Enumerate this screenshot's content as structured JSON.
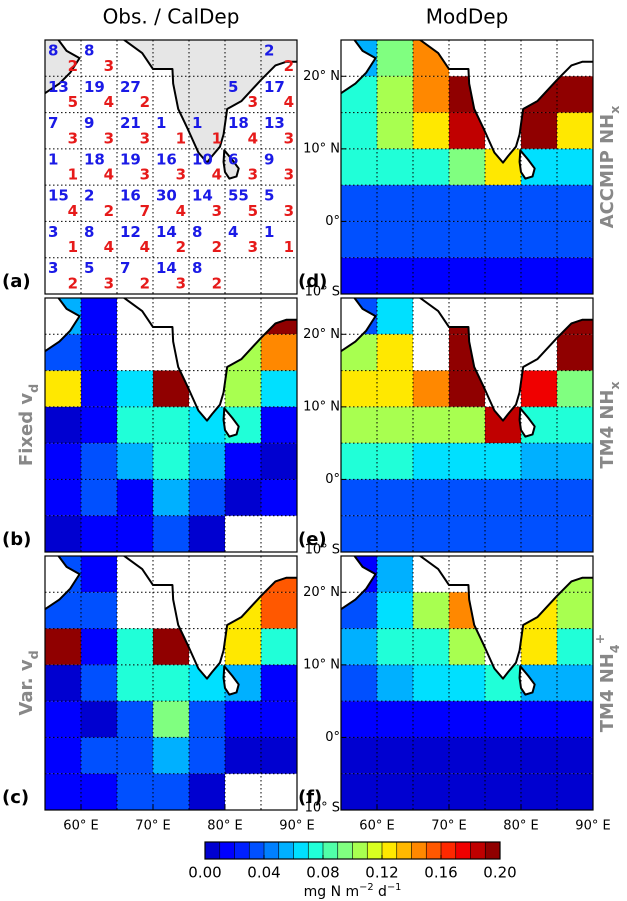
{
  "axes": {
    "xlim": [
      55,
      90
    ],
    "ylim": [
      -10,
      25
    ],
    "x_edges": [
      55,
      60,
      65,
      70,
      75,
      80,
      85,
      90
    ],
    "y_edges": [
      25,
      20,
      15,
      10,
      5,
      0,
      -5,
      -10
    ],
    "xticks": [
      {
        "value": 60,
        "label": "60° E"
      },
      {
        "value": 70,
        "label": "70° E"
      },
      {
        "value": 80,
        "label": "80° E"
      },
      {
        "value": 90,
        "label": "90° E"
      }
    ],
    "yticks": [
      {
        "value": 20,
        "label": "20° N"
      },
      {
        "value": 10,
        "label": "10° N"
      },
      {
        "value": 0,
        "label": "0°"
      },
      {
        "value": -10,
        "label": "10° S"
      }
    ],
    "grid": true
  },
  "colorbar": {
    "lim": [
      0,
      0.2
    ],
    "colors": [
      "#0000d0",
      "#0000ff",
      "#0020ff",
      "#0050ff",
      "#0080ff",
      "#00b0ff",
      "#00e0ff",
      "#20ffd8",
      "#50ffa8",
      "#80ff80",
      "#a8ff50",
      "#d8ff20",
      "#ffe800",
      "#ffb800",
      "#ff8800",
      "#ff5800",
      "#ff2800",
      "#f00000",
      "#c00000",
      "#900000"
    ],
    "ticks": [
      {
        "value": 0,
        "label": "0.00"
      },
      {
        "value": 0.04,
        "label": "0.04"
      },
      {
        "value": 0.08,
        "label": "0.08"
      },
      {
        "value": 0.12,
        "label": "0.12"
      },
      {
        "value": 0.16,
        "label": "0.16"
      },
      {
        "value": 0.2,
        "label": "0.20"
      }
    ],
    "label": [
      {
        "t": "mg N m"
      },
      {
        "sup": "−2"
      },
      {
        "t": " d"
      },
      {
        "sup": "−1"
      }
    ]
  },
  "chart_data": [
    {
      "type": "count-grid",
      "title": "Obs. / CalDep",
      "panel_label": "(a)",
      "blue_numbers": [
        [
          8,
          8,
          null,
          null,
          null,
          null,
          2
        ],
        [
          13,
          19,
          27,
          null,
          null,
          5,
          17
        ],
        [
          7,
          9,
          21,
          1,
          1,
          18,
          13
        ],
        [
          1,
          18,
          19,
          16,
          10,
          6,
          9
        ],
        [
          15,
          2,
          16,
          30,
          14,
          55,
          5
        ],
        [
          3,
          8,
          12,
          14,
          8,
          4,
          1
        ],
        [
          3,
          5,
          7,
          14,
          8,
          null,
          null
        ]
      ],
      "red_numbers": [
        [
          2,
          3,
          null,
          null,
          null,
          null,
          2
        ],
        [
          5,
          4,
          2,
          null,
          null,
          3,
          4
        ],
        [
          3,
          3,
          3,
          1,
          1,
          4,
          3
        ],
        [
          1,
          4,
          3,
          3,
          4,
          3,
          3
        ],
        [
          4,
          2,
          7,
          4,
          3,
          5,
          3
        ],
        [
          1,
          4,
          4,
          2,
          2,
          3,
          1
        ],
        [
          2,
          3,
          2,
          3,
          2,
          null,
          null
        ]
      ]
    },
    {
      "type": "heatmap",
      "panel_label": "(b)",
      "side_label": [
        {
          "t": "Fixed v"
        },
        {
          "sub": "d"
        }
      ],
      "values": [
        [
          0.05,
          0.02,
          null,
          null,
          null,
          null,
          0.19
        ],
        [
          0.04,
          0.02,
          null,
          null,
          null,
          0.11,
          0.14
        ],
        [
          0.12,
          0.02,
          0.06,
          0.19,
          null,
          0.11,
          0.06
        ],
        [
          0.01,
          0.02,
          0.07,
          0.07,
          0.06,
          0.07,
          0.02
        ],
        [
          0.02,
          0.03,
          0.05,
          0.08,
          0.05,
          0.02,
          0.01
        ],
        [
          0.02,
          0.03,
          0.02,
          0.05,
          0.03,
          0.01,
          0.02
        ],
        [
          0.01,
          0.02,
          0.02,
          0.03,
          0.01,
          null,
          null
        ]
      ]
    },
    {
      "type": "heatmap",
      "panel_label": "(c)",
      "side_label": [
        {
          "t": "Var. v"
        },
        {
          "sub": "d"
        }
      ],
      "values": [
        [
          0.04,
          0.02,
          null,
          null,
          null,
          null,
          0.16
        ],
        [
          0.04,
          0.03,
          null,
          null,
          null,
          0.12,
          0.16
        ],
        [
          0.19,
          0.02,
          0.07,
          0.19,
          null,
          0.12,
          0.07
        ],
        [
          0.01,
          0.03,
          0.07,
          0.07,
          0.06,
          0.05,
          0.02
        ],
        [
          0.02,
          0.01,
          0.04,
          0.09,
          0.04,
          0.02,
          0.02
        ],
        [
          0.02,
          0.03,
          0.03,
          0.05,
          0.03,
          0.01,
          0.01
        ],
        [
          0.02,
          0.02,
          0.03,
          0.03,
          0.01,
          null,
          null
        ]
      ]
    },
    {
      "type": "heatmap",
      "title": "ModDep",
      "panel_label": "(d)",
      "side_label": [
        {
          "t": "ACCMIP NH"
        },
        {
          "sub": "x"
        }
      ],
      "values": [
        [
          0.05,
          0.09,
          0.15,
          null,
          null,
          null,
          null
        ],
        [
          0.07,
          0.1,
          0.15,
          0.19,
          null,
          0.19,
          0.19
        ],
        [
          0.08,
          0.1,
          0.12,
          0.18,
          null,
          0.19,
          0.12
        ],
        [
          0.07,
          0.07,
          0.07,
          0.09,
          0.12,
          0.06,
          0.06
        ],
        [
          0.04,
          0.04,
          0.04,
          0.04,
          0.04,
          0.04,
          0.04
        ],
        [
          0.03,
          0.03,
          0.03,
          0.03,
          0.03,
          0.03,
          0.03
        ],
        [
          0.02,
          0.02,
          0.02,
          0.02,
          0.02,
          0.02,
          0.02
        ]
      ]
    },
    {
      "type": "heatmap",
      "panel_label": "(e)",
      "side_label": [
        {
          "t": "TM4 NH"
        },
        {
          "sub": "x"
        }
      ],
      "values": [
        [
          0.04,
          0.06,
          null,
          0.19,
          null,
          null,
          0.19
        ],
        [
          0.1,
          0.12,
          null,
          0.19,
          0.19,
          null,
          0.19
        ],
        [
          0.12,
          0.12,
          0.14,
          0.19,
          null,
          0.17,
          0.09
        ],
        [
          0.1,
          0.11,
          0.11,
          0.1,
          0.18,
          0.07,
          0.07
        ],
        [
          0.07,
          0.07,
          0.06,
          0.06,
          0.06,
          0.05,
          0.05
        ],
        [
          0.04,
          0.04,
          0.04,
          0.04,
          0.04,
          0.04,
          0.04
        ],
        [
          0.03,
          0.03,
          0.03,
          0.03,
          0.03,
          0.03,
          0.03
        ]
      ]
    },
    {
      "type": "heatmap",
      "panel_label": "(f)",
      "side_label": [
        {
          "t": "TM4 NH"
        },
        {
          "sub": "4"
        },
        {
          "sup": "+"
        }
      ],
      "values": [
        [
          0.02,
          0.05,
          null,
          null,
          null,
          null,
          0.11
        ],
        [
          0.04,
          0.06,
          0.1,
          0.15,
          null,
          0.12,
          0.11
        ],
        [
          0.05,
          0.07,
          0.08,
          0.1,
          null,
          0.12,
          0.07
        ],
        [
          0.04,
          0.05,
          0.06,
          0.06,
          0.07,
          0.05,
          0.05
        ],
        [
          0.02,
          0.02,
          0.02,
          0.02,
          0.02,
          0.02,
          0.02
        ],
        [
          0.01,
          0.01,
          0.01,
          0.01,
          0.01,
          0.01,
          0.01
        ],
        [
          0.01,
          0.01,
          0.01,
          0.01,
          0.01,
          0.01,
          0.01
        ]
      ]
    }
  ]
}
